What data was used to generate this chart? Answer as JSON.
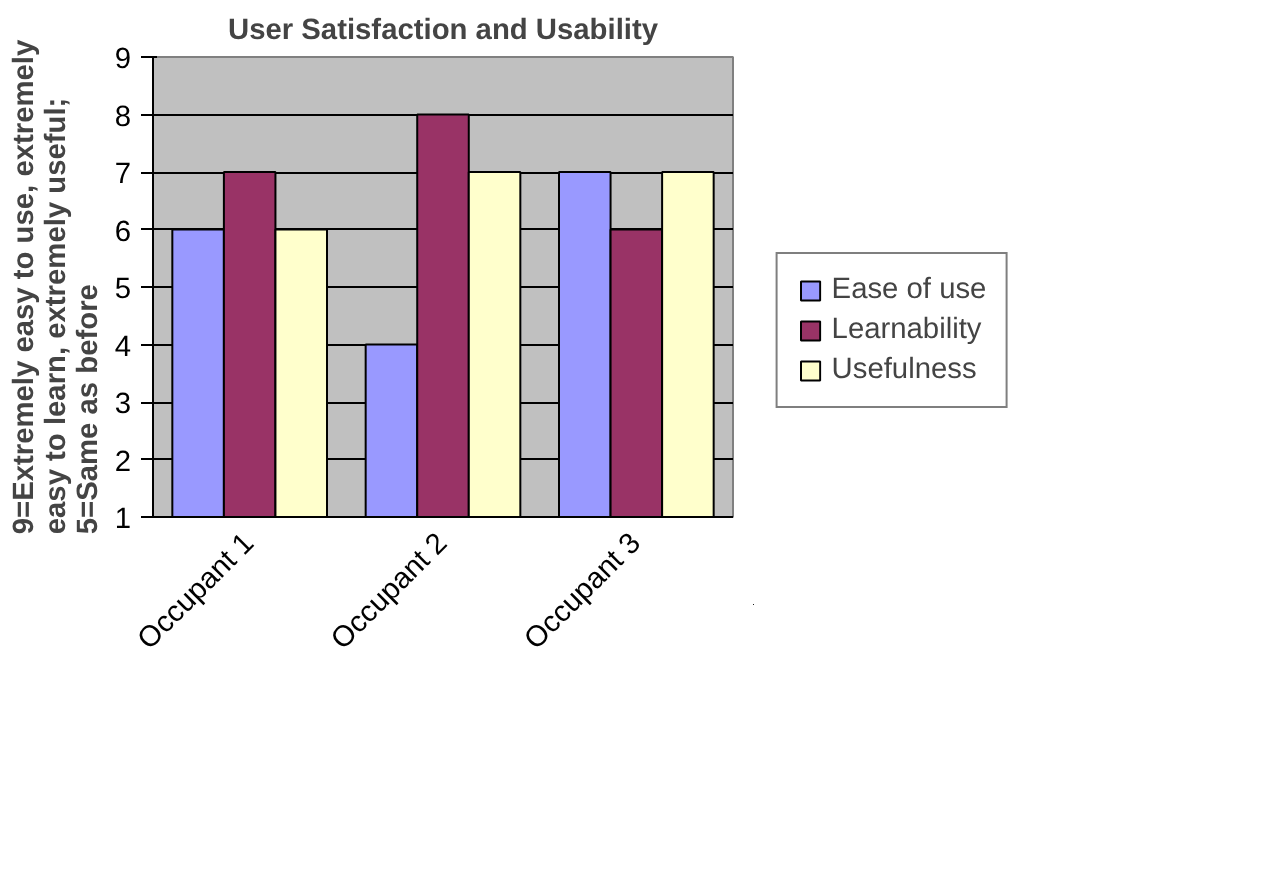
{
  "chart_data": {
    "type": "bar",
    "title": "User Satisfaction and Usability",
    "ylabel": "9=Extremely easy to use, extremely\neasy to learn, extremely useful;\n5=Same as before",
    "categories": [
      "Occupant 1",
      "Occupant 2",
      "Occupant 3"
    ],
    "series": [
      {
        "name": "Ease of use",
        "color": "#9999ff",
        "values": [
          6,
          4,
          7
        ]
      },
      {
        "name": "Learnability",
        "color": "#993366",
        "values": [
          7,
          8,
          6
        ]
      },
      {
        "name": "Usefulness",
        "color": "#ffffcc",
        "values": [
          6,
          7,
          7
        ]
      }
    ],
    "ylim": [
      1,
      9
    ],
    "yticks": [
      1,
      2,
      3,
      4,
      5,
      6,
      7,
      8,
      9
    ],
    "grid": "y",
    "legend": "right"
  }
}
